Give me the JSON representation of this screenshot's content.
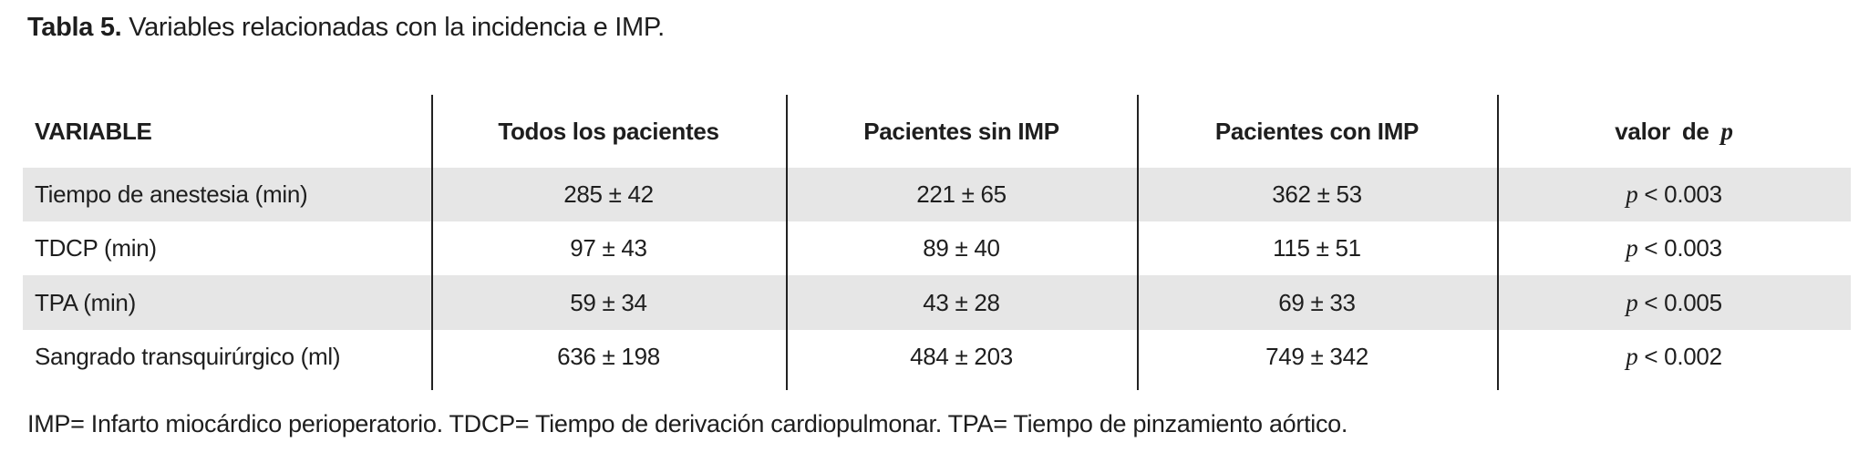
{
  "title": {
    "label": "Tabla 5.",
    "text": "Variables relacionadas con la incidencia e IMP."
  },
  "table": {
    "headers": {
      "variable": "VARIABLE",
      "all_patients": "Todos los pacientes",
      "without_imp": "Pacientes sin IMP",
      "with_imp": "Pacientes con IMP",
      "p_prefix": "valor de",
      "p_symbol": "p"
    },
    "p_symbol": "p",
    "rows": [
      {
        "variable": "Tiempo de anestesia (min)",
        "all": "285 ± 42",
        "without": "221 ± 65",
        "with": "362 ± 53",
        "p": "< 0.003"
      },
      {
        "variable": "TDCP (min)",
        "all": "97 ± 43",
        "without": "89 ± 40",
        "with": "115 ± 51",
        "p": "< 0.003"
      },
      {
        "variable": "TPA (min)",
        "all": "59 ± 34",
        "without": "43 ± 28",
        "with": "69 ± 33",
        "p": "< 0.005"
      },
      {
        "variable": "Sangrado transquirúrgico (ml)",
        "all": "636 ± 198",
        "without": "484 ± 203",
        "with": "749 ± 342",
        "p": "< 0.002"
      }
    ]
  },
  "footnote": "IMP= Infarto miocárdico perioperatorio. TDCP= Tiempo de derivación cardiopulmonar. TPA= Tiempo de pinzamiento aórtico.",
  "colors": {
    "row_shade": "#e6e6e6",
    "text": "#1e1e1e",
    "divider": "#222222",
    "background": "#ffffff"
  }
}
